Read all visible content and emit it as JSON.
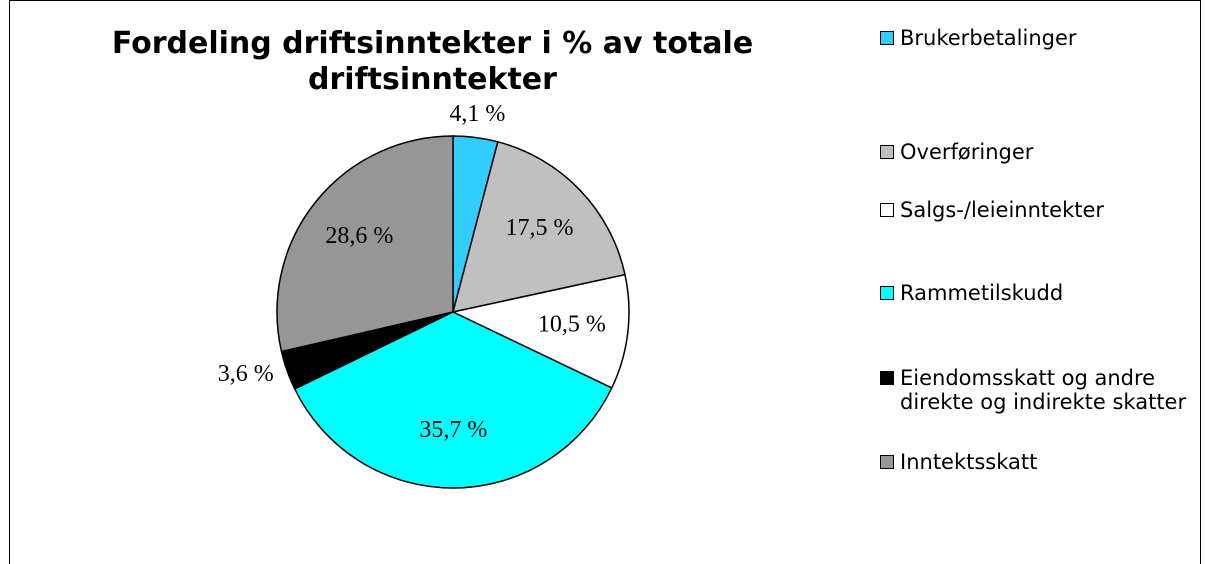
{
  "chart_data": {
    "type": "pie",
    "title": "Fordeling driftsinntekter i % av totale driftsinntekter",
    "categories": [
      "Brukerbetalinger",
      "Overføringer",
      "Salgs-/leieinntekter",
      "Rammetilskudd",
      "Eiendomsskatt og andre direkte og indirekte skatter",
      "Inntektsskatt"
    ],
    "values": [
      4.1,
      17.5,
      10.5,
      35.7,
      3.6,
      28.6
    ],
    "value_labels": [
      "4,1 %",
      "17,5 %",
      "10,5 %",
      "35,7 %",
      "3,6 %",
      "28,6 %"
    ],
    "colors": [
      "#33ccff",
      "#c0c0c0",
      "#ffffff",
      "#00ffff",
      "#000000",
      "#969696"
    ],
    "legend": "right"
  }
}
